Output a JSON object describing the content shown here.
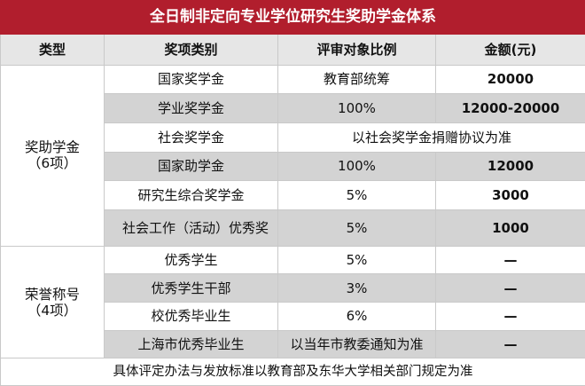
{
  "title": "全日制非定向专业学位研究生奖助学金体系",
  "headers": {
    "type": "类型",
    "category": "奖项类别",
    "ratio": "评审对象比例",
    "amount": "金额(元)"
  },
  "groups": [
    {
      "type_name": "奖助学金",
      "type_count": "（6项）",
      "rows": [
        {
          "category": "国家奖学金",
          "ratio": "教育部统筹",
          "amount": "20000"
        },
        {
          "category": "学业奖学金",
          "ratio": "100%",
          "amount": "12000-20000"
        },
        {
          "category": "社会奖学金",
          "merged": "以社会奖学金捐赠协议为准"
        },
        {
          "category": "国家助学金",
          "ratio": "100%",
          "amount": "12000"
        },
        {
          "category": "研究生综合奖学金",
          "ratio": "5%",
          "amount": "3000"
        },
        {
          "category": "社会工作（活动）优秀奖",
          "ratio": "5%",
          "amount": "1000"
        }
      ]
    },
    {
      "type_name": "荣誉称号",
      "type_count": "（4项）",
      "rows": [
        {
          "category": "优秀学生",
          "ratio": "5%",
          "amount": "—"
        },
        {
          "category": "优秀学生干部",
          "ratio": "3%",
          "amount": "—"
        },
        {
          "category": "校优秀毕业生",
          "ratio": "6%",
          "amount": "—"
        },
        {
          "category": "上海市优秀毕业生",
          "ratio": "以当年市教委通知为准",
          "amount": "—"
        }
      ]
    }
  ],
  "footer": "具体评定办法与发放标准以教育部及东华大学相关部门规定为准",
  "colors": {
    "title_bg": "#b11e2d",
    "header_bg": "#e6e6e6",
    "shade_bg": "#d3d3d3",
    "border": "#c9c9c9"
  }
}
